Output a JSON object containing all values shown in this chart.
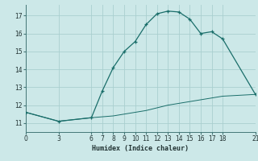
{
  "xlabel": "Humidex (Indice chaleur)",
  "background_color": "#cce8e8",
  "grid_color": "#aacfcf",
  "line_color": "#1a6e6a",
  "xlim": [
    0,
    21
  ],
  "ylim": [
    10.5,
    17.6
  ],
  "xticks": [
    0,
    3,
    6,
    7,
    8,
    9,
    10,
    11,
    12,
    13,
    14,
    15,
    16,
    17,
    18,
    21
  ],
  "yticks": [
    11,
    12,
    13,
    14,
    15,
    16,
    17
  ],
  "curve1_x": [
    0,
    3,
    6,
    7,
    8,
    9,
    10,
    11,
    12,
    13,
    14,
    15,
    16,
    17,
    18,
    21
  ],
  "curve1_y": [
    11.6,
    11.1,
    11.3,
    12.8,
    14.1,
    15.0,
    15.55,
    16.5,
    17.1,
    17.25,
    17.2,
    16.8,
    16.0,
    16.1,
    15.7,
    12.6
  ],
  "curve2_x": [
    0,
    3,
    6,
    7,
    8,
    9,
    10,
    11,
    12,
    13,
    14,
    15,
    16,
    17,
    18,
    21
  ],
  "curve2_y": [
    11.6,
    11.1,
    11.3,
    11.35,
    11.4,
    11.5,
    11.6,
    11.7,
    11.85,
    12.0,
    12.1,
    12.2,
    12.3,
    12.4,
    12.5,
    12.6
  ]
}
